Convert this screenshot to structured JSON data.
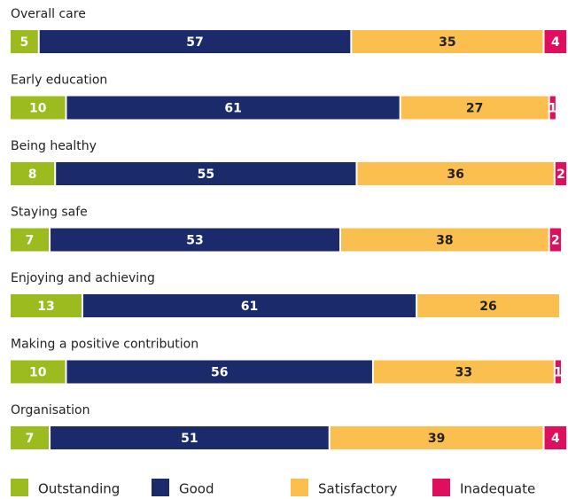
{
  "chart_data": {
    "type": "stacked-bar",
    "categories": [
      "Overall care",
      "Early education",
      "Being healthy",
      "Staying safe",
      "Enjoying and achieving",
      "Making a positive contribution",
      "Organisation"
    ],
    "series": [
      {
        "name": "Outstanding",
        "color": "#9bbb1e",
        "values": [
          5,
          10,
          8,
          7,
          13,
          10,
          7
        ]
      },
      {
        "name": "Good",
        "color": "#1b2a6b",
        "values": [
          57,
          61,
          55,
          53,
          61,
          56,
          51
        ]
      },
      {
        "name": "Satisfactory",
        "color": "#fbbf4f",
        "values": [
          35,
          27,
          36,
          38,
          26,
          33,
          39
        ]
      },
      {
        "name": "Inadequate",
        "color": "#df0f5e",
        "values": [
          4,
          1,
          2,
          2,
          0,
          1,
          4
        ]
      }
    ]
  }
}
